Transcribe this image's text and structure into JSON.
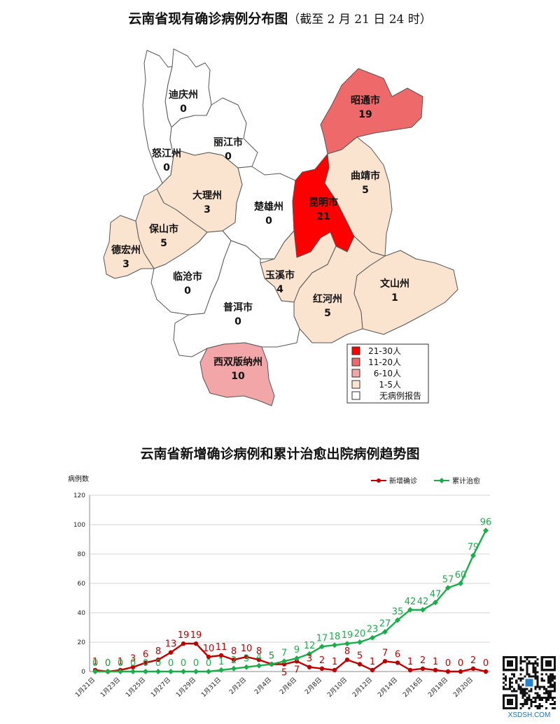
{
  "map": {
    "title": "云南省现有确诊病例分布图",
    "subtitle": "（截至 2 月 21 日 24 时）",
    "colors": {
      "range_21_30": "#ff0000",
      "range_11_20": "#ee6a6a",
      "range_6_10": "#f3a6a8",
      "range_1_5": "#fbe4cf",
      "none": "#ffffff"
    },
    "regions": [
      {
        "name": "迪庆州",
        "value": "0",
        "level": "none"
      },
      {
        "name": "怒江州",
        "value": "0",
        "level": "none"
      },
      {
        "name": "丽江市",
        "value": "0",
        "level": "none"
      },
      {
        "name": "昭通市",
        "value": "19",
        "level": "range_11_20"
      },
      {
        "name": "大理州",
        "value": "3",
        "level": "range_1_5"
      },
      {
        "name": "楚雄州",
        "value": "0",
        "level": "none"
      },
      {
        "name": "昆明市",
        "value": "21",
        "level": "range_21_30"
      },
      {
        "name": "曲靖市",
        "value": "5",
        "level": "range_1_5"
      },
      {
        "name": "保山市",
        "value": "5",
        "level": "range_1_5"
      },
      {
        "name": "德宏州",
        "value": "3",
        "level": "range_1_5"
      },
      {
        "name": "临沧市",
        "value": "0",
        "level": "none"
      },
      {
        "name": "玉溪市",
        "value": "4",
        "level": "range_1_5"
      },
      {
        "name": "红河州",
        "value": "5",
        "level": "range_1_5"
      },
      {
        "name": "文山州",
        "value": "1",
        "level": "range_1_5"
      },
      {
        "name": "普洱市",
        "value": "0",
        "level": "none"
      },
      {
        "name": "西双版纳州",
        "value": "10",
        "level": "range_6_10"
      }
    ],
    "legend": [
      {
        "label": "21-30人",
        "level": "range_21_30"
      },
      {
        "label": "11-20人",
        "level": "range_11_20"
      },
      {
        "label": "6-10人",
        "level": "range_6_10"
      },
      {
        "label": "1-5人",
        "level": "range_1_5"
      },
      {
        "label": "无病例报告",
        "level": "none"
      }
    ]
  },
  "chart_data": {
    "type": "line",
    "title": "云南省新增确诊病例和累计治愈出院病例趋势图",
    "ylabel": "病例数",
    "xlabel": "",
    "ylim": [
      0,
      120
    ],
    "yticks": [
      0,
      20,
      40,
      60,
      80,
      100,
      120
    ],
    "grid": true,
    "legend_position": "top-right",
    "x": [
      "1月21日",
      "1月22日",
      "1月23日",
      "1月24日",
      "1月25日",
      "1月26日",
      "1月27日",
      "1月28日",
      "1月29日",
      "1月30日",
      "1月31日",
      "2月1日",
      "2月2日",
      "2月3日",
      "2月4日",
      "2月5日",
      "2月6日",
      "2月7日",
      "2月8日",
      "2月9日",
      "2月10日",
      "2月11日",
      "2月12日",
      "2月13日",
      "2月14日",
      "2月15日",
      "2月16日",
      "2月17日",
      "2月18日",
      "2月19日",
      "2月20日",
      "2月21日"
    ],
    "xtick_labels": [
      "1月21日",
      "1月23日",
      "1月25日",
      "1月27日",
      "1月29日",
      "1月31日",
      "2月2日",
      "2月4日",
      "2月6日",
      "2月8日",
      "2月10日",
      "2月12日",
      "2月14日",
      "2月16日",
      "2月18日",
      "2月20日"
    ],
    "series": [
      {
        "name": "新增确诊",
        "color": "#c00000",
        "values": [
          1,
          0,
          1,
          3,
          6,
          8,
          13,
          19,
          19,
          10,
          11,
          8,
          10,
          8,
          5,
          5,
          7,
          3,
          2,
          1,
          8,
          5,
          1,
          7,
          6,
          1,
          2,
          1,
          0,
          0,
          2,
          0
        ]
      },
      {
        "name": "累计治愈",
        "color": "#1aae4a",
        "values": [
          0,
          0,
          0,
          0,
          0,
          0,
          0,
          0,
          0,
          0,
          1,
          2,
          3,
          4,
          5,
          7,
          9,
          12,
          17,
          18,
          19,
          20,
          23,
          27,
          35,
          42,
          42,
          47,
          57,
          60,
          79,
          96
        ]
      }
    ]
  },
  "qr": {
    "caption": "XSDSH.COM"
  }
}
